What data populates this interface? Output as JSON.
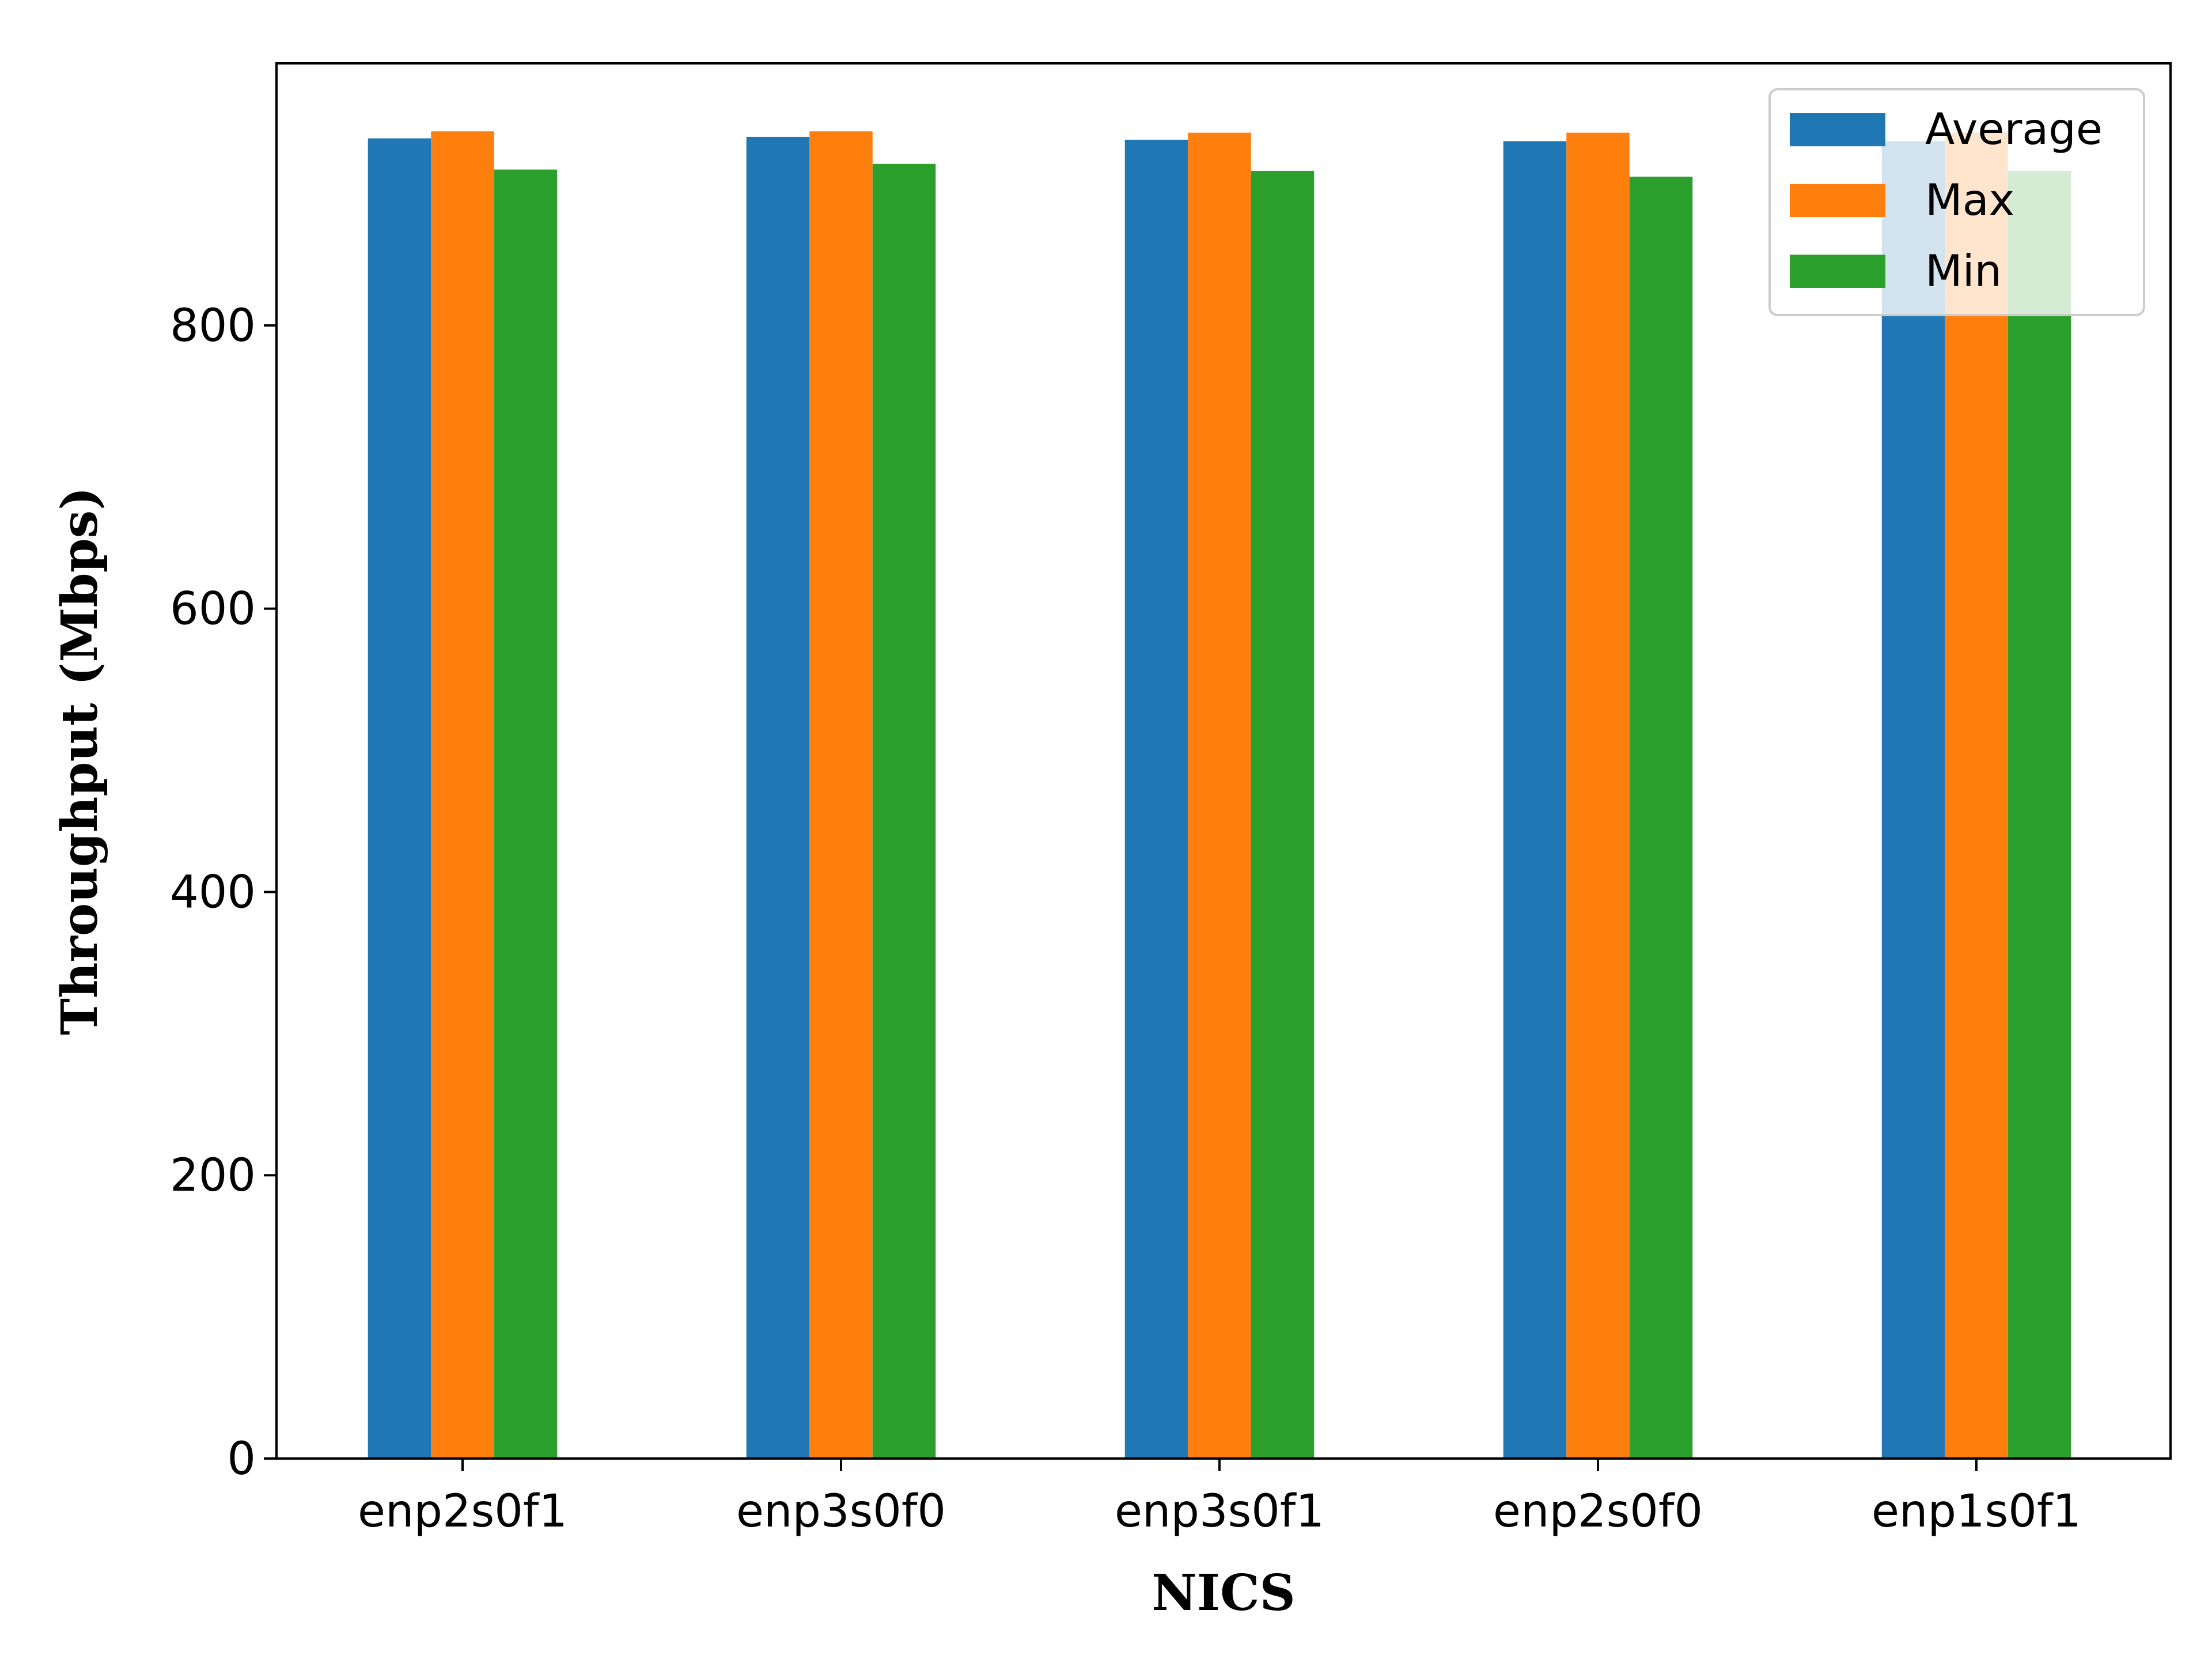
{
  "chart_data": {
    "type": "bar",
    "title": "",
    "xlabel": "NICS",
    "ylabel": "Throughput (Mbps)",
    "categories": [
      "enp2s0f1",
      "enp3s0f0",
      "enp3s0f1",
      "enp2s0f0",
      "enp1s0f1"
    ],
    "series": [
      {
        "name": "Average",
        "color": "#1f77b4",
        "values": [
          932,
          933,
          931,
          930,
          930
        ]
      },
      {
        "name": "Max",
        "color": "#ff7f0e",
        "values": [
          937,
          937,
          936,
          936,
          936
        ]
      },
      {
        "name": "Min",
        "color": "#2ca02c",
        "values": [
          910,
          914,
          909,
          905,
          909
        ]
      }
    ],
    "ylim": [
      0,
      985
    ],
    "yticks": [
      0,
      200,
      400,
      600,
      800
    ],
    "grid": false,
    "legend_position": "top-right"
  }
}
